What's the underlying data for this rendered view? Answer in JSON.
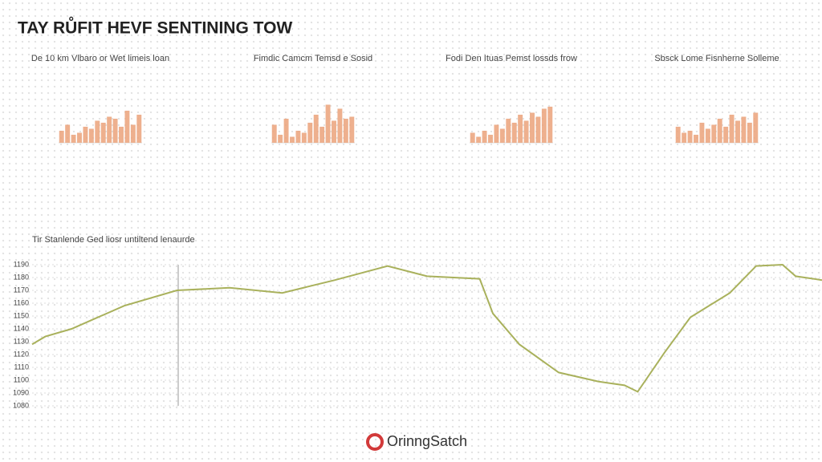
{
  "header": {
    "title": "TAY RŮFIT HEVF SENTINING TOW"
  },
  "footer": {
    "brand": "OrinngSatch"
  },
  "chart_data": [
    {
      "type": "bar",
      "title": "De 10 km Vlbaro or Wet limeis loan",
      "color": "#eba27a",
      "ylim": [
        0,
        100
      ],
      "values": [
        30,
        45,
        20,
        25,
        40,
        35,
        55,
        50,
        65,
        60,
        40,
        80,
        45,
        70
      ]
    },
    {
      "type": "bar",
      "title": "Fimdic Camcm Temsd e Sosid",
      "color": "#eba27a",
      "ylim": [
        0,
        100
      ],
      "values": [
        45,
        20,
        60,
        15,
        30,
        25,
        50,
        70,
        40,
        95,
        55,
        85,
        60,
        65
      ]
    },
    {
      "type": "bar",
      "title": "Fodi Den Ituas Pemst lossds frow",
      "color": "#eba27a",
      "ylim": [
        0,
        100
      ],
      "values": [
        25,
        15,
        30,
        20,
        45,
        35,
        60,
        50,
        70,
        55,
        75,
        65,
        85,
        90
      ]
    },
    {
      "type": "bar",
      "title": "Sbsck Lome Fisnherne Solleme",
      "color": "#eba27a",
      "ylim": [
        0,
        100
      ],
      "values": [
        40,
        25,
        30,
        20,
        50,
        35,
        45,
        60,
        40,
        70,
        55,
        65,
        50,
        75
      ]
    },
    {
      "type": "line",
      "title": "Tir Stanlende Ged liosr untiltend lenaurde",
      "color": "#a9b15c",
      "x": [
        0,
        1,
        3,
        5,
        7,
        11,
        15,
        19,
        23,
        27,
        30,
        34,
        35,
        37,
        40,
        43,
        45,
        46,
        48,
        50,
        53,
        55,
        57,
        58,
        60
      ],
      "values": [
        1128,
        1134,
        1140,
        1149,
        1158,
        1170,
        1172,
        1168,
        1178,
        1189,
        1181,
        1179,
        1152,
        1128,
        1106,
        1099,
        1096,
        1091,
        1121,
        1149,
        1168,
        1189,
        1190,
        1181,
        1178
      ],
      "xlim": [
        0,
        60
      ],
      "ylim": [
        1080,
        1190
      ],
      "yticks": [
        1190,
        1180,
        1170,
        1160,
        1150,
        1140,
        1130,
        1120,
        1110,
        1100,
        1090,
        1080
      ],
      "grid": true
    }
  ]
}
